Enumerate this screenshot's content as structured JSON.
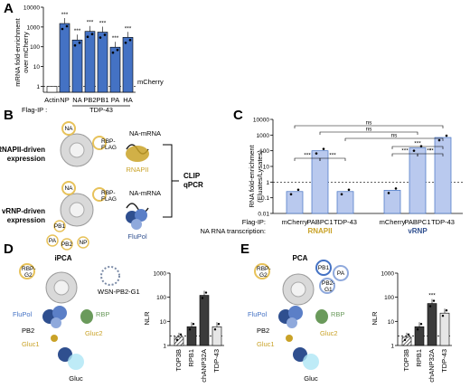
{
  "panels": {
    "A": {
      "label": "A",
      "ylabel_line1": "mRNA fold-enrichment",
      "ylabel_line2": "over mCherry",
      "ref_label": "mCherry",
      "flag_ip_label": "Flag-IP :",
      "group_label": "TDP-43",
      "yticks": [
        "10000",
        "1000",
        "100",
        "10",
        "1"
      ]
    },
    "B": {
      "label": "B",
      "row1_title": "RNAPII-driven expression",
      "row2_title": "vRNP-driven expression",
      "na_mrna_1": "NA-mRNA",
      "na_mrna_2": "NA-mRNA",
      "rnapii": "RNAPII",
      "flupol": "FluPol",
      "clip": "CLIP qPCR",
      "na_1": "NA",
      "rbp_flag_1": "RBP-FLAG",
      "na_2": "NA",
      "rbp_flag_2": "RBP-FLAG",
      "pb1": "PB1",
      "pa": "PA",
      "pb2": "PB2",
      "np": "NP"
    },
    "C": {
      "label": "C",
      "ylabel_line1": "RNA fold-enrichment",
      "ylabel_line2": "(Eluates/Lysates)",
      "flag_ip_label": "Flag-IP:",
      "na_transcription_label": "NA RNA transcription:",
      "group1": "RNAPII",
      "group2": "vRNP",
      "yticks": [
        "10000",
        "1000",
        "100",
        "10",
        "1",
        "0.1",
        "0.01"
      ],
      "sig": [
        "ns",
        "ns",
        "ns",
        "***",
        "***",
        "***",
        "***",
        "***",
        "*"
      ]
    },
    "D": {
      "label": "D",
      "title": "iPCA",
      "virus": "WSN-PB2-G1",
      "rbp_g2": "RBP-G2",
      "flupol": "FluPol",
      "rbp": "RBP",
      "pb2": "PB2",
      "gluc1": "Gluc1",
      "gluc2": "Gluc2",
      "gluc": "Gluc",
      "ylabel": "NLR",
      "yticks": [
        "1000",
        "100",
        "10",
        "1"
      ]
    },
    "E": {
      "label": "E",
      "title": "PCA",
      "pb1": "PB1",
      "pa": "PA",
      "pb2_g1": "PB2-G1",
      "rbp_g2": "RBP-G2",
      "flupol": "FluPol",
      "rbp": "RBP",
      "pb2": "PB2",
      "gluc1": "Gluc1",
      "gluc2": "Gluc2",
      "gluc": "Gluc",
      "ylabel": "NLR",
      "yticks": [
        "1000",
        "100",
        "10",
        "1"
      ],
      "sig": "***"
    }
  },
  "colors": {
    "bar_blue": "#4472c4",
    "bar_light": "#b9c9ee",
    "dark_bar": "#3b3b3b",
    "gold": "#c9a227",
    "navy": "#2f4f8f"
  },
  "chart_data": [
    {
      "id": "A",
      "type": "bar",
      "scale": "log",
      "ylim": [
        0.5,
        10000
      ],
      "categories": [
        "Actin",
        "NP",
        "NA",
        "PB2",
        "PB1",
        "PA",
        "HA"
      ],
      "values": [
        1,
        1500,
        220,
        600,
        550,
        95,
        300
      ],
      "significance": [
        "",
        "***",
        "***",
        "***",
        "***",
        "***",
        "***"
      ],
      "ylabel": "mRNA fold-enrichment over mCherry",
      "reference_line": 1
    },
    {
      "id": "C",
      "type": "bar",
      "scale": "log",
      "ylim": [
        0.01,
        10000
      ],
      "categories": [
        "mCherry",
        "PABPC1",
        "TDP-43",
        "mCherry",
        "PABPC1",
        "TDP-43"
      ],
      "values": [
        0.25,
        100,
        0.25,
        0.3,
        150,
        700
      ],
      "ylabel": "RNA fold-enrichment (Eluates/Lysates)",
      "reference_line": 1
    },
    {
      "id": "D",
      "type": "bar",
      "scale": "log",
      "ylim": [
        1,
        1000
      ],
      "categories": [
        "TOP3B",
        "RPB1",
        "chANP32A",
        "TDP-43"
      ],
      "values": [
        2.2,
        6,
        120,
        6
      ],
      "ylabel": "NLR",
      "reference_line": 2.5
    },
    {
      "id": "E",
      "type": "bar",
      "scale": "log",
      "ylim": [
        1,
        1000
      ],
      "categories": [
        "TOP3B",
        "RPB1",
        "chANP32A",
        "TDP-43"
      ],
      "values": [
        2.2,
        6,
        55,
        22
      ],
      "ylabel": "NLR",
      "reference_line": 2.5
    }
  ]
}
